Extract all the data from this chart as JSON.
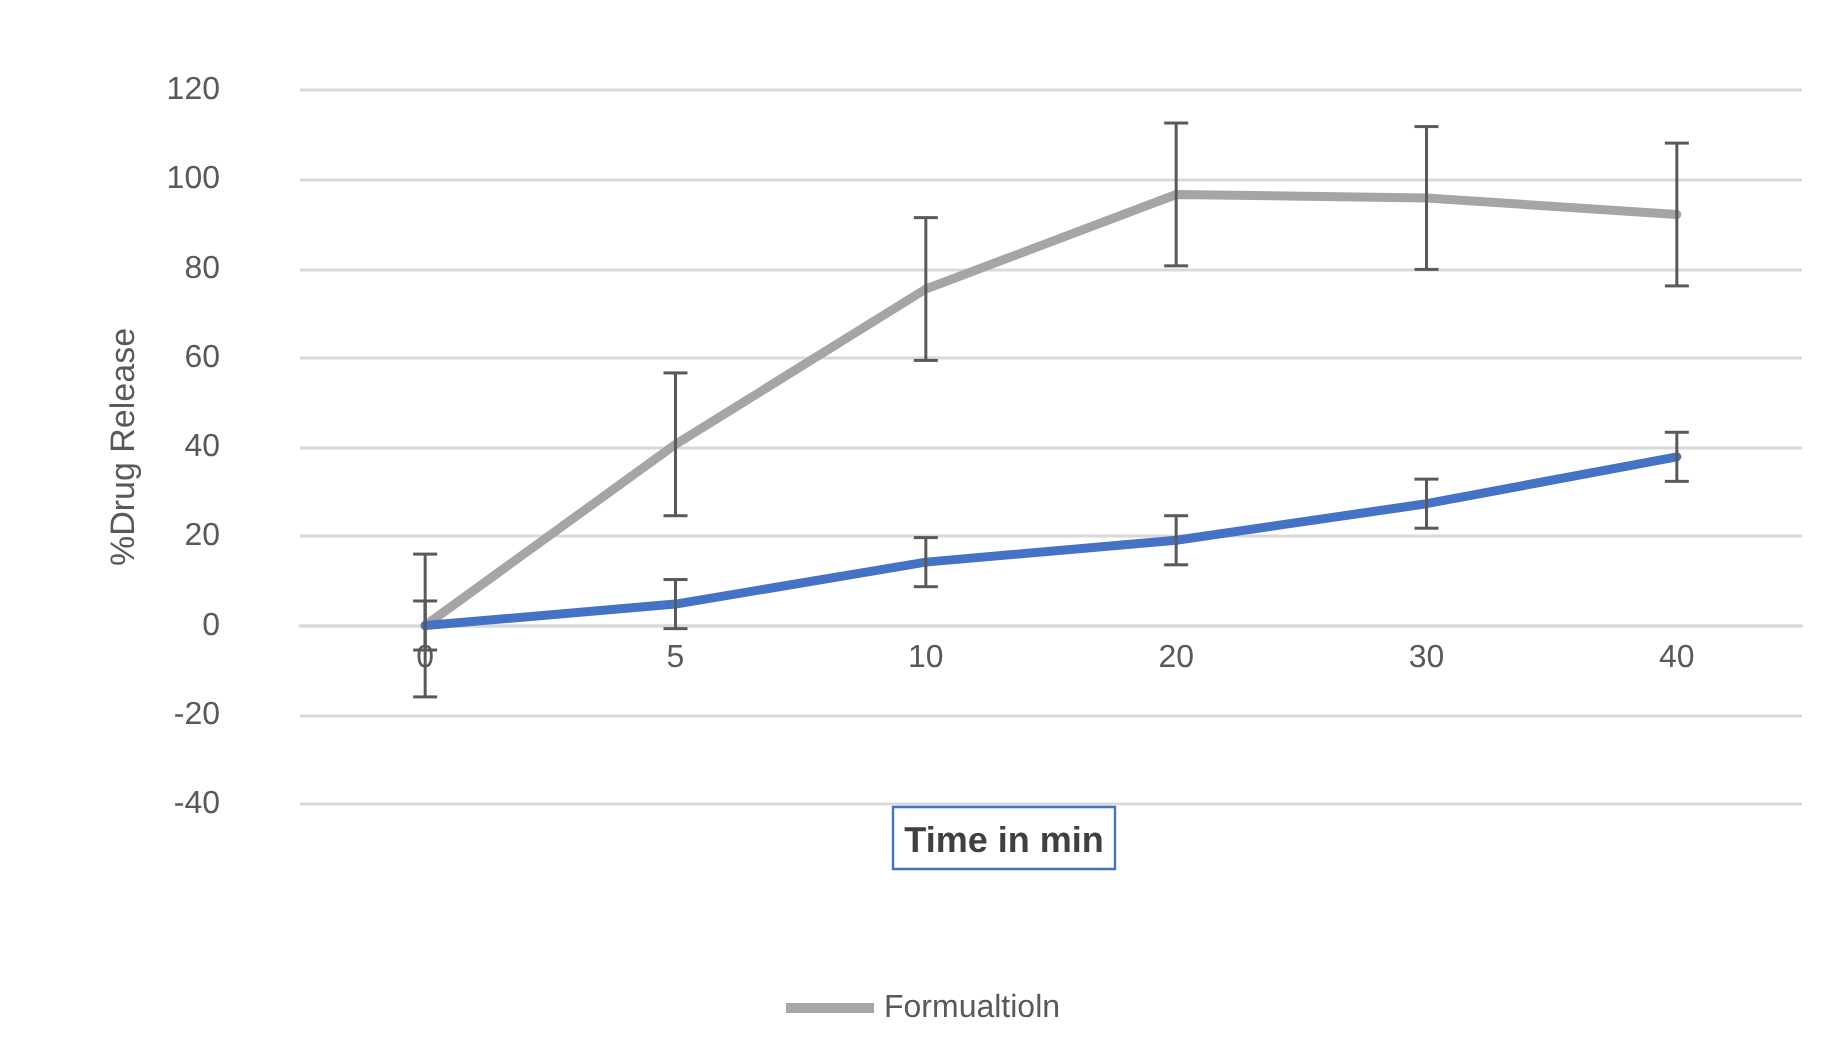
{
  "chart_data": {
    "type": "line",
    "xlabel": "Time in min",
    "ylabel": "%Drug Release",
    "categories": [
      "0",
      "5",
      "10",
      "20",
      "30",
      "40"
    ],
    "series": [
      {
        "name": "Formualtioln",
        "color": "#a5a5a5",
        "values": [
          0,
          40.6,
          75.4,
          96.6,
          95.8,
          92.1
        ],
        "errors": [
          16,
          16,
          16,
          16,
          16,
          16
        ]
      },
      {
        "color": "#4472c4",
        "values": [
          0,
          4.8,
          14.2,
          19.1,
          27.3,
          37.8
        ],
        "errors": [
          5.5,
          5.5,
          5.5,
          5.5,
          5.5,
          5.5
        ]
      }
    ],
    "ylim": [
      -40,
      120
    ],
    "yticks": [
      -40,
      -20,
      0,
      20,
      40,
      60,
      80,
      100,
      120
    ],
    "grid": "y",
    "legend": "bottom",
    "marker": "none",
    "line_style": "solid"
  }
}
